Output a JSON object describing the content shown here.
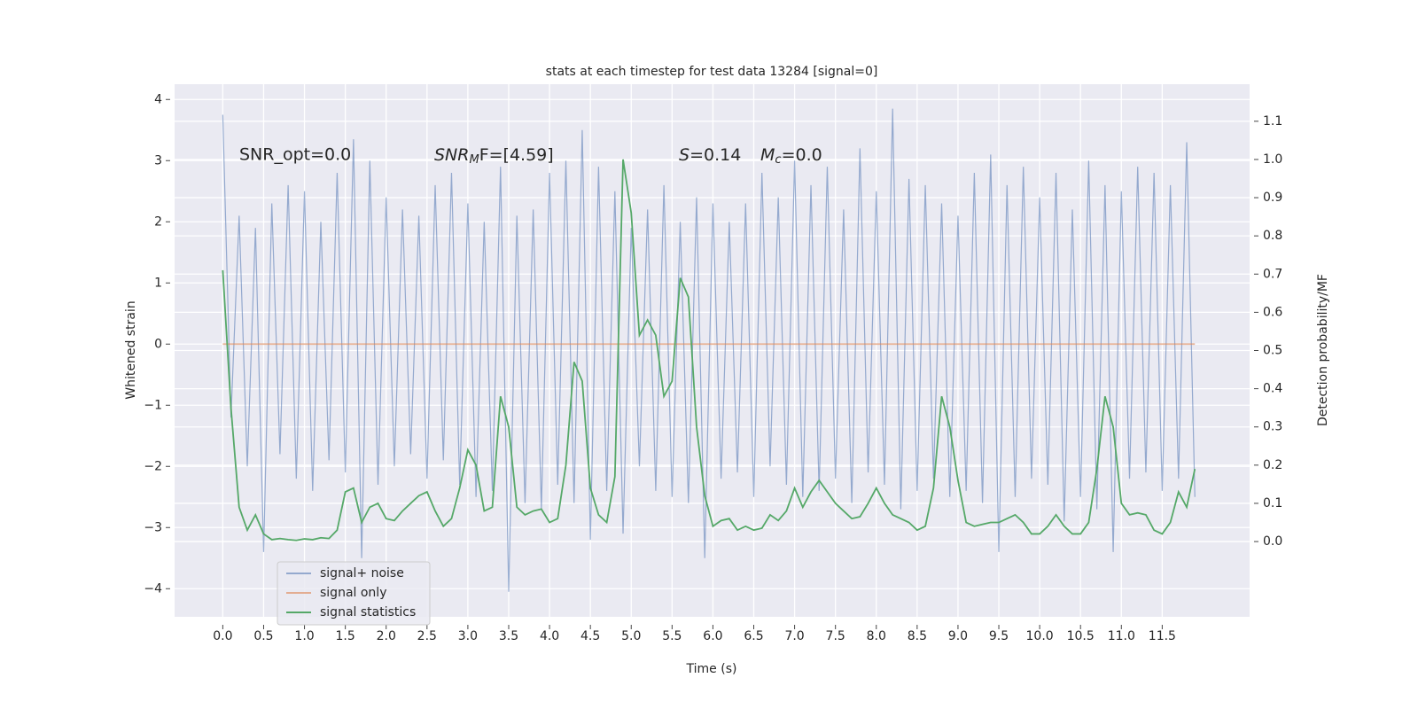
{
  "chart_data": {
    "type": "line",
    "title": "stats at each timestep for test data 13284 [signal=0]",
    "xlabel": "Time (s)",
    "ylabel": "Whitened strain",
    "y2label": "Detection probability/MF",
    "annotations": [
      "SNR_opt=0.0",
      [
        "SNR",
        "M",
        "F=[4.59]"
      ],
      [
        "S",
        "=0.14"
      ],
      [
        "M",
        "c",
        "=0.0"
      ]
    ],
    "x": [
      0,
      0.1,
      0.2,
      0.3,
      0.4,
      0.5,
      0.6,
      0.7,
      0.8,
      0.9,
      1,
      1.1,
      1.2,
      1.3,
      1.4,
      1.5,
      1.6,
      1.7,
      1.8,
      1.9,
      2,
      2.1,
      2.2,
      2.3,
      2.4,
      2.5,
      2.6,
      2.7,
      2.8,
      2.9,
      3,
      3.1,
      3.2,
      3.3,
      3.4,
      3.5,
      3.6,
      3.7,
      3.8,
      3.9,
      4,
      4.1,
      4.2,
      4.3,
      4.4,
      4.5,
      4.6,
      4.7,
      4.8,
      4.9,
      5,
      5.1,
      5.2,
      5.3,
      5.4,
      5.5,
      5.6,
      5.7,
      5.8,
      5.9,
      6,
      6.1,
      6.2,
      6.3,
      6.4,
      6.5,
      6.6,
      6.7,
      6.8,
      6.9,
      7,
      7.1,
      7.2,
      7.3,
      7.4,
      7.5,
      7.6,
      7.7,
      7.8,
      7.9,
      8,
      8.1,
      8.2,
      8.3,
      8.4,
      8.5,
      8.6,
      8.7,
      8.8,
      8.9,
      9,
      9.1,
      9.2,
      9.3,
      9.4,
      9.5,
      9.6,
      9.7,
      9.8,
      9.9,
      10,
      10.1,
      10.2,
      10.3,
      10.4,
      10.5,
      10.6,
      10.7,
      10.8,
      10.9,
      11,
      11.1,
      11.2,
      11.3,
      11.4,
      11.5,
      11.6,
      11.7,
      11.8,
      11.9
    ],
    "series": [
      {
        "name": "signal+ noise",
        "color": "#4c72b0",
        "values": [
          3.75,
          -1.2,
          2.1,
          -2.0,
          1.9,
          -3.4,
          2.3,
          -1.8,
          2.6,
          -2.2,
          2.5,
          -2.4,
          2.0,
          -1.9,
          2.8,
          -2.1,
          3.35,
          -3.5,
          3.0,
          -2.3,
          2.4,
          -2.0,
          2.2,
          -1.8,
          2.1,
          -2.2,
          2.6,
          -1.9,
          2.8,
          -2.3,
          2.3,
          -2.5,
          2.0,
          -2.4,
          2.9,
          -4.05,
          2.1,
          -2.6,
          2.2,
          -2.7,
          2.8,
          -2.3,
          3.0,
          -2.6,
          3.5,
          -3.2,
          2.9,
          -2.4,
          2.5,
          -3.1,
          1.9,
          -2.0,
          2.2,
          -2.4,
          2.6,
          -2.5,
          2.0,
          -2.6,
          2.4,
          -3.5,
          2.3,
          -2.2,
          2.0,
          -2.1,
          2.3,
          -2.5,
          2.8,
          -2.0,
          2.4,
          -2.3,
          3.0,
          -2.5,
          2.6,
          -2.4,
          2.9,
          -2.2,
          2.2,
          -2.6,
          3.2,
          -2.1,
          2.5,
          -2.3,
          3.85,
          -2.7,
          2.7,
          -2.4,
          2.6,
          -2.2,
          2.3,
          -2.5,
          2.1,
          -2.4,
          2.8,
          -2.6,
          3.1,
          -3.4,
          2.6,
          -2.5,
          2.9,
          -2.2,
          2.4,
          -2.3,
          2.8,
          -2.9,
          2.2,
          -2.5,
          3.0,
          -2.7,
          2.6,
          -3.4,
          2.5,
          -2.2,
          2.9,
          -2.1,
          2.8,
          -2.4,
          2.6,
          -2.2,
          3.3,
          -2.5
        ]
      },
      {
        "name": "signal only",
        "color": "#dd8452",
        "values": [
          0,
          0,
          0,
          0,
          0,
          0,
          0,
          0,
          0,
          0,
          0,
          0,
          0,
          0,
          0,
          0,
          0,
          0,
          0,
          0,
          0,
          0,
          0,
          0,
          0,
          0,
          0,
          0,
          0,
          0,
          0,
          0,
          0,
          0,
          0,
          0,
          0,
          0,
          0,
          0,
          0,
          0,
          0,
          0,
          0,
          0,
          0,
          0,
          0,
          0,
          0,
          0,
          0,
          0,
          0,
          0,
          0,
          0,
          0,
          0,
          0,
          0,
          0,
          0,
          0,
          0,
          0,
          0,
          0,
          0,
          0,
          0,
          0,
          0,
          0,
          0,
          0,
          0,
          0,
          0,
          0,
          0,
          0,
          0,
          0,
          0,
          0,
          0,
          0,
          0,
          0,
          0,
          0,
          0,
          0,
          0,
          0,
          0,
          0,
          0,
          0,
          0,
          0,
          0,
          0,
          0,
          0,
          0,
          0,
          0,
          0,
          0,
          0,
          0,
          0,
          0,
          0,
          0,
          0,
          0
        ]
      },
      {
        "name": "signal statistics",
        "color": "#55a868",
        "axis": "y2",
        "values": [
          0.71,
          0.35,
          0.09,
          0.03,
          0.07,
          0.02,
          0.005,
          0.008,
          0.005,
          0.003,
          0.007,
          0.005,
          0.01,
          0.008,
          0.03,
          0.13,
          0.14,
          0.05,
          0.09,
          0.1,
          0.06,
          0.055,
          0.08,
          0.1,
          0.12,
          0.13,
          0.08,
          0.04,
          0.06,
          0.14,
          0.24,
          0.2,
          0.08,
          0.09,
          0.38,
          0.3,
          0.09,
          0.07,
          0.08,
          0.085,
          0.05,
          0.06,
          0.2,
          0.47,
          0.42,
          0.14,
          0.07,
          0.05,
          0.17,
          1.0,
          0.86,
          0.54,
          0.58,
          0.54,
          0.38,
          0.42,
          0.69,
          0.64,
          0.3,
          0.12,
          0.04,
          0.055,
          0.06,
          0.03,
          0.04,
          0.03,
          0.035,
          0.07,
          0.055,
          0.08,
          0.14,
          0.09,
          0.13,
          0.16,
          0.13,
          0.1,
          0.08,
          0.06,
          0.065,
          0.1,
          0.14,
          0.1,
          0.07,
          0.06,
          0.05,
          0.03,
          0.04,
          0.14,
          0.38,
          0.3,
          0.16,
          0.05,
          0.04,
          0.045,
          0.05,
          0.05,
          0.06,
          0.07,
          0.05,
          0.02,
          0.02,
          0.04,
          0.07,
          0.04,
          0.02,
          0.02,
          0.05,
          0.19,
          0.38,
          0.3,
          0.1,
          0.07,
          0.075,
          0.07,
          0.03,
          0.02,
          0.05,
          0.13,
          0.09,
          0.19
        ]
      }
    ],
    "xlim": [
      -0.59,
      12.57
    ],
    "xticks": [
      {
        "value": 0,
        "label": "0.0"
      },
      0.5,
      {
        "value": 1,
        "label": "1.0"
      },
      1.5,
      {
        "value": 2,
        "label": "2.0"
      },
      2.5,
      {
        "value": 3,
        "label": "3.0"
      },
      3.5,
      {
        "value": 4,
        "label": "4.0"
      },
      4.5,
      {
        "value": 5,
        "label": "5.0"
      },
      5.5,
      {
        "value": 6,
        "label": "6.0"
      },
      6.5,
      {
        "value": 7,
        "label": "7.0"
      },
      7.5,
      {
        "value": 8,
        "label": "8.0"
      },
      8.5,
      {
        "value": 9,
        "label": "9.0"
      },
      9.5,
      {
        "value": 10,
        "label": "10.0"
      },
      10.5,
      {
        "value": 11,
        "label": "11.0"
      },
      11.5
    ],
    "ylim": [
      -4.46,
      4.25
    ],
    "yticks": [
      {
        "value": -4,
        "label": "−4"
      },
      {
        "value": -3,
        "label": "−3"
      },
      {
        "value": -2,
        "label": "−2"
      },
      {
        "value": -1,
        "label": "−1"
      },
      0,
      1,
      2,
      3,
      4
    ],
    "y2lim": [
      -0.197,
      1.197
    ],
    "y2ticks": [
      {
        "value": 0,
        "label": "0.0"
      },
      0.1,
      0.2,
      0.3,
      0.4,
      0.5,
      0.6,
      0.7,
      0.8,
      0.9,
      {
        "value": 1,
        "label": "1.0"
      },
      1.1
    ],
    "grid": true,
    "legend": "lower left"
  }
}
